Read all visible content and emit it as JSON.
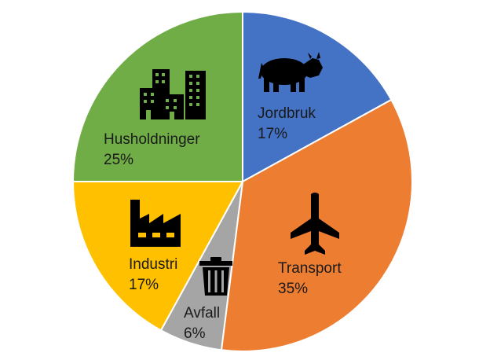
{
  "chart_data": {
    "type": "pie",
    "slices": [
      {
        "label": "Jordbruk",
        "value": 17,
        "value_label": "17%",
        "color": "#4472C4",
        "icon": "cow-icon"
      },
      {
        "label": "Transport",
        "value": 35,
        "value_label": "35%",
        "color": "#ED7D31",
        "icon": "airplane-icon"
      },
      {
        "label": "Avfall",
        "value": 6,
        "value_label": "6%",
        "color": "#A5A5A5",
        "icon": "trash-can-icon"
      },
      {
        "label": "Industri",
        "value": 17,
        "value_label": "17%",
        "color": "#FFC000",
        "icon": "factory-icon"
      },
      {
        "label": "Husholdninger",
        "value": 25,
        "value_label": "25%",
        "color": "#70AD47",
        "icon": "buildings-icon"
      }
    ],
    "start_angle": "12 o'clock",
    "direction": "clockwise",
    "slice_border_color": "#ffffff",
    "legend": "none",
    "title": ""
  }
}
